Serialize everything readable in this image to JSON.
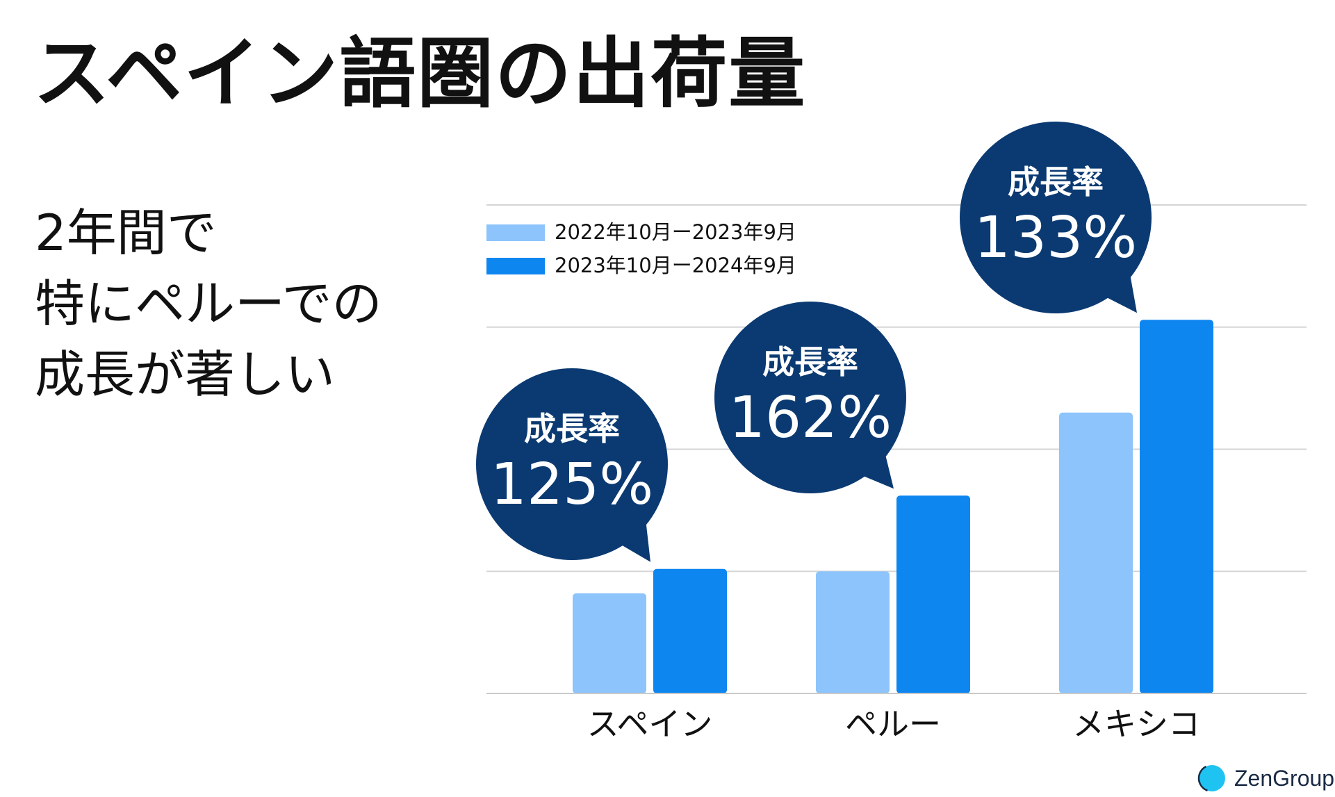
{
  "title": "スペイン語圏の出荷量",
  "subtitle_lines": [
    "2年間で",
    "特にペルーでの",
    "成長が著しい"
  ],
  "chart_data": {
    "type": "bar",
    "categories": [
      "スペイン",
      "ペルー",
      "メキシコ"
    ],
    "series": [
      {
        "name": "2022年10月ー2023年9月",
        "values": [
          0.82,
          1.0,
          2.3
        ]
      },
      {
        "name": "2023年10月ー2024年9月",
        "values": [
          1.02,
          1.62,
          3.06
        ]
      }
    ],
    "ylim": [
      0,
      4
    ],
    "grid": true,
    "legend": "top-left",
    "colors": [
      "#8cc4fb",
      "#0e86f0"
    ],
    "callout_color": "#0b3a72",
    "annotations": [
      {
        "category": "スペイン",
        "label": "成長率",
        "value": "125%"
      },
      {
        "category": "ペルー",
        "label": "成長率",
        "value": "162%"
      },
      {
        "category": "メキシコ",
        "label": "成長率",
        "value": "133%"
      }
    ]
  },
  "logo": {
    "text": "ZenGroup",
    "color": "#1fc3f2"
  }
}
